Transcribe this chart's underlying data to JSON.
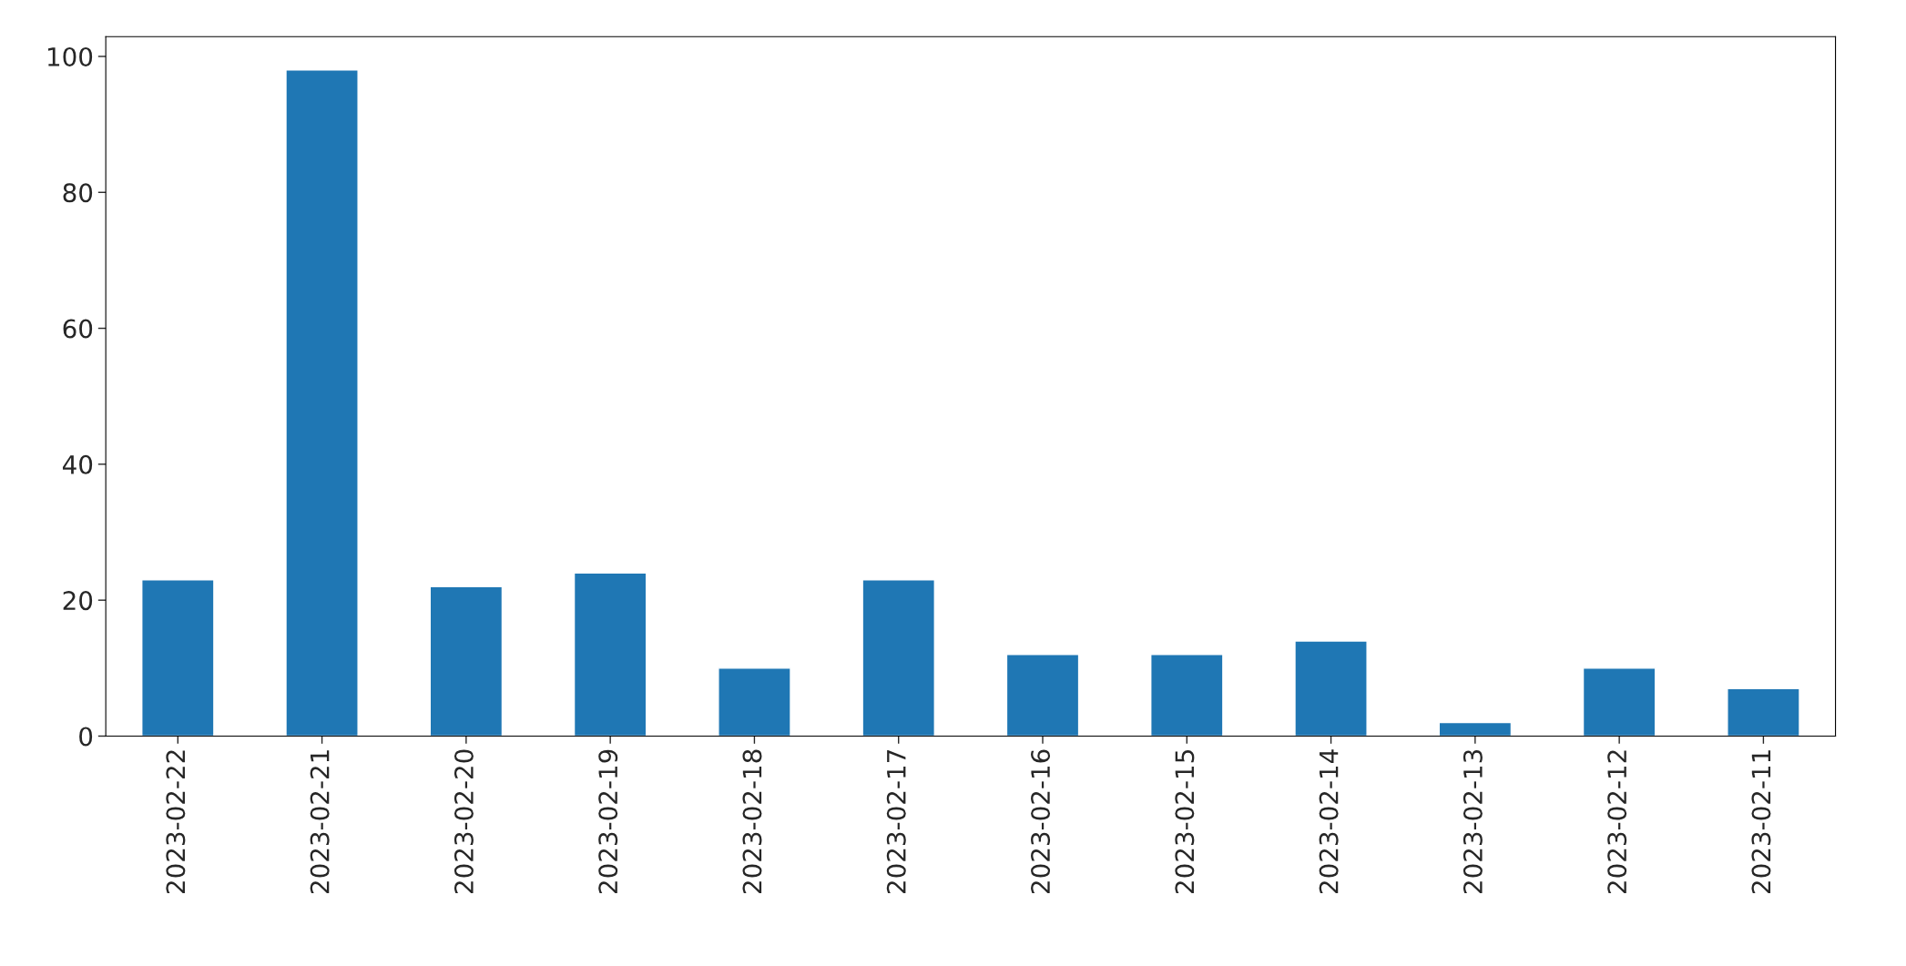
{
  "chart_data": {
    "type": "bar",
    "categories": [
      "2023-02-22",
      "2023-02-21",
      "2023-02-20",
      "2023-02-19",
      "2023-02-18",
      "2023-02-17",
      "2023-02-16",
      "2023-02-15",
      "2023-02-14",
      "2023-02-13",
      "2023-02-12",
      "2023-02-11"
    ],
    "values": [
      23,
      98,
      22,
      24,
      10,
      23,
      12,
      12,
      14,
      2,
      10,
      7
    ],
    "color": "#1f77b4",
    "ylim": [
      0,
      102.9
    ],
    "yticks": [
      0,
      20,
      40,
      60,
      80,
      100
    ],
    "grid": false,
    "legend": false
  }
}
